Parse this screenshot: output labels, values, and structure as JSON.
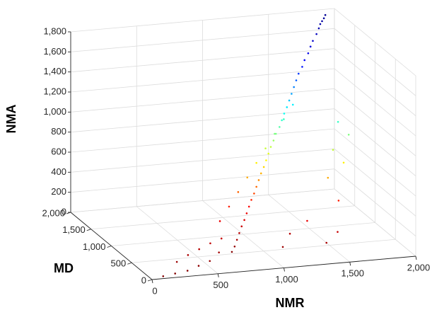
{
  "chart_data": {
    "type": "scatter",
    "dimensions": 3,
    "title": "",
    "xlabel": "NMR",
    "ylabel": "MD",
    "zlabel": "NMA",
    "xlim": [
      0,
      2000
    ],
    "ylim": [
      0,
      2000
    ],
    "zlim": [
      0,
      1800
    ],
    "xticks": [
      0,
      500,
      1000,
      1500,
      2000
    ],
    "xtick_labels": [
      "0",
      "500",
      "1,000",
      "1,500",
      "2,000"
    ],
    "yticks": [
      0,
      500,
      1000,
      1500,
      2000
    ],
    "ytick_labels": [
      "0",
      "500",
      "1,000",
      "1,500",
      "2,000"
    ],
    "zticks": [
      0,
      200,
      400,
      600,
      800,
      1000,
      1200,
      1400,
      1600,
      1800
    ],
    "ztick_labels": [
      "0",
      "200",
      "400",
      "600",
      "800",
      "1,000",
      "1,200",
      "1,400",
      "1,600",
      "1,800"
    ],
    "grid": true,
    "colormap": "jet",
    "colormap_stops": [
      "#00008f",
      "#0000ff",
      "#00ffff",
      "#ffff00",
      "#ff0000",
      "#800000"
    ],
    "points": [
      [
        1900,
        1900,
        1780
      ],
      [
        1880,
        1870,
        1760
      ],
      [
        1860,
        1850,
        1740
      ],
      [
        1840,
        1830,
        1720
      ],
      [
        1820,
        1800,
        1690
      ],
      [
        1790,
        1760,
        1650
      ],
      [
        1750,
        1720,
        1600
      ],
      [
        1720,
        1680,
        1560
      ],
      [
        1690,
        1640,
        1510
      ],
      [
        1650,
        1600,
        1460
      ],
      [
        1620,
        1560,
        1410
      ],
      [
        1580,
        1520,
        1360
      ],
      [
        1550,
        1480,
        1310
      ],
      [
        1520,
        1440,
        1260
      ],
      [
        1490,
        1400,
        1210
      ],
      [
        1460,
        1360,
        1160
      ],
      [
        1430,
        1320,
        1110
      ],
      [
        1400,
        1290,
        1060
      ],
      [
        1370,
        1250,
        1010
      ],
      [
        1340,
        1210,
        960
      ],
      [
        1300,
        1170,
        910
      ],
      [
        1270,
        1130,
        860
      ],
      [
        1240,
        1100,
        810
      ],
      [
        1210,
        1060,
        760
      ],
      [
        1180,
        1020,
        710
      ],
      [
        1150,
        980,
        660
      ],
      [
        1120,
        950,
        610
      ],
      [
        1090,
        910,
        560
      ],
      [
        1060,
        870,
        510
      ],
      [
        1030,
        830,
        460
      ],
      [
        1000,
        800,
        410
      ],
      [
        970,
        760,
        360
      ],
      [
        940,
        720,
        310
      ],
      [
        910,
        680,
        260
      ],
      [
        880,
        650,
        210
      ],
      [
        850,
        610,
        160
      ],
      [
        820,
        570,
        110
      ],
      [
        790,
        530,
        60
      ],
      [
        760,
        500,
        20
      ],
      [
        1500,
        300,
        200
      ],
      [
        1400,
        250,
        120
      ],
      [
        1300,
        400,
        300
      ],
      [
        1200,
        500,
        150
      ],
      [
        1100,
        350,
        80
      ],
      [
        1600,
        600,
        400
      ],
      [
        1700,
        800,
        700
      ],
      [
        1800,
        1000,
        900
      ],
      [
        1750,
        1100,
        1000
      ],
      [
        1650,
        900,
        800
      ],
      [
        1550,
        700,
        600
      ],
      [
        600,
        300,
        100
      ],
      [
        500,
        200,
        60
      ],
      [
        400,
        150,
        40
      ],
      [
        300,
        100,
        20
      ],
      [
        200,
        80,
        10
      ],
      [
        100,
        50,
        5
      ],
      [
        650,
        400,
        200
      ],
      [
        550,
        350,
        180
      ],
      [
        450,
        300,
        150
      ],
      [
        350,
        250,
        120
      ],
      [
        250,
        200,
        80
      ],
      [
        700,
        600,
        300
      ],
      [
        800,
        700,
        400
      ],
      [
        900,
        800,
        500
      ],
      [
        1000,
        900,
        600
      ],
      [
        1100,
        1000,
        700
      ],
      [
        1200,
        1100,
        800
      ],
      [
        1300,
        1200,
        900
      ],
      [
        1400,
        1300,
        1000
      ],
      [
        1500,
        1400,
        1100
      ]
    ]
  }
}
